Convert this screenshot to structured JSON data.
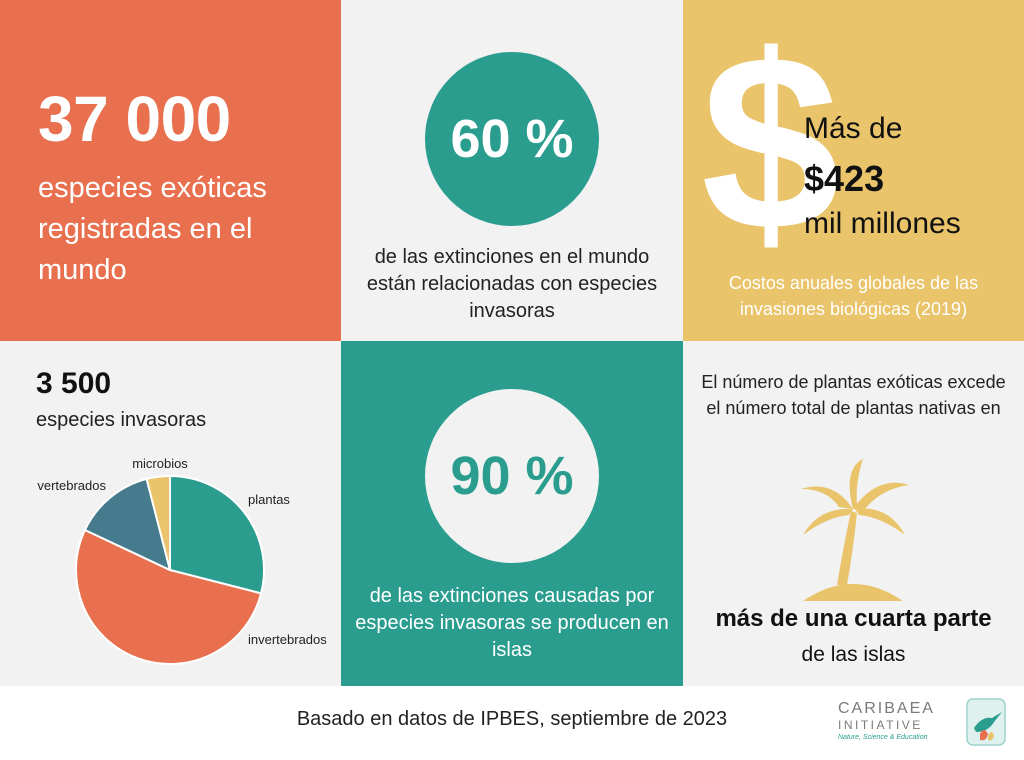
{
  "tile1": {
    "number": "37 000",
    "text": "especies exóticas registradas en el mundo"
  },
  "tile2": {
    "percent": "60 %",
    "text": "de las extinciones en el mundo están relacionadas con especies invasoras"
  },
  "tile3": {
    "symbol": "$",
    "pre": "Más de",
    "amount": "$423",
    "post": "mil millones",
    "subtitle": "Costos anuales globales de las invasiones biológicas (2019)"
  },
  "tile4": {
    "number": "3 500",
    "subtitle": "especies invasoras"
  },
  "tile5": {
    "percent": "90 %",
    "text": "de las extinciones causadas por especies invasoras se producen en islas"
  },
  "tile6": {
    "text": "El número de plantas exóticas excede el número total de plantas nativas en",
    "bold": "más de una cuarta parte",
    "sub": "de las islas",
    "icon": "palm-tree-island-icon"
  },
  "footer": {
    "source": "Basado en datos de IPBES, septiembre de 2023"
  },
  "logo": {
    "name": "CARIBAEA",
    "initiative": "INITIATIVE",
    "tagline": "Nature, Science & Education",
    "icon": "hummingbird-icon"
  },
  "colors": {
    "coral": "#e8704f",
    "teal": "#2a9d8f",
    "sand": "#e9c46a",
    "slate": "#457b8d",
    "light": "#f2f2f2"
  },
  "chart_data": {
    "type": "pie",
    "categories": [
      "plantas",
      "invertebrados",
      "vertebrados",
      "microbios"
    ],
    "values": [
      29,
      53,
      14,
      4
    ],
    "colors": [
      "#2a9d8f",
      "#e8704f",
      "#457b8d",
      "#e9c46a"
    ],
    "title": "",
    "start_angle_deg": 0,
    "direction": "clockwise"
  }
}
